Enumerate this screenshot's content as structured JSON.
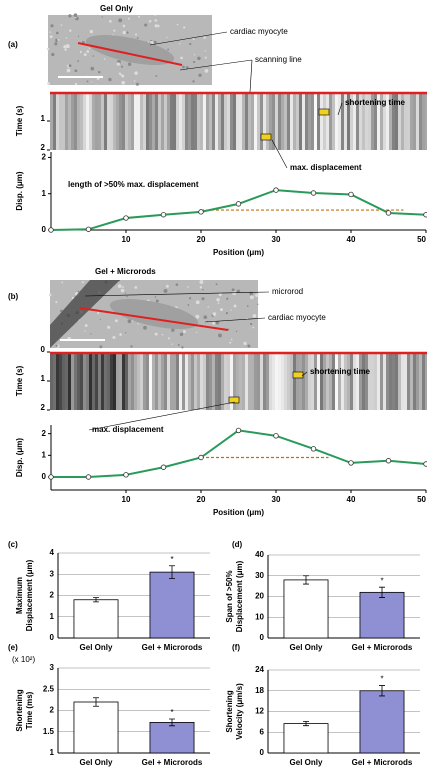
{
  "chart_data": [
    {
      "type": "image",
      "panel": "(a)",
      "title": "Gel Only",
      "labels": [
        "cardiac myocyte",
        "scanning line"
      ]
    },
    {
      "type": "kymograph",
      "ylabel": "Time (s)",
      "ylim": [
        0,
        2
      ],
      "yticks": [
        1,
        2
      ],
      "labels": [
        "shortening time",
        "max. displacement"
      ]
    },
    {
      "type": "line",
      "xlabel": "Position (μm)",
      "ylabel": "Disp. (μm)",
      "xlim": [
        0,
        50
      ],
      "ylim": [
        0,
        2.15
      ],
      "xticks": [
        10,
        20,
        30,
        40,
        50
      ],
      "yticks": [
        0,
        1,
        2
      ],
      "color": "#2a9a5a",
      "x": [
        0,
        5,
        10,
        15,
        20,
        25,
        30,
        35,
        40,
        45,
        50
      ],
      "values": [
        0,
        0.02,
        0.33,
        0.42,
        0.5,
        0.72,
        1.1,
        1.02,
        0.98,
        0.47,
        0.42
      ],
      "threshold": {
        "y": 0.55,
        "x": [
          20,
          47
        ]
      },
      "annotation": "length of >50% max. displacement"
    },
    {
      "type": "image",
      "panel": "(b)",
      "title": "Gel + Microrods",
      "labels": [
        "microrod",
        "cardiac myocyte"
      ]
    },
    {
      "type": "kymograph",
      "ylabel": "Time (s)",
      "ylim": [
        0,
        2
      ],
      "yticks": [
        0,
        1,
        2
      ],
      "labels": [
        "shortening time",
        "max. displacement"
      ]
    },
    {
      "type": "line",
      "xlabel": "Position (μm)",
      "ylabel": "Disp. (μm)",
      "xlim": [
        0,
        50
      ],
      "ylim": [
        -0.6,
        2.4
      ],
      "xticks": [
        10,
        20,
        30,
        40,
        50
      ],
      "yticks": [
        0,
        1,
        2
      ],
      "color": "#2a9a5a",
      "x": [
        0,
        5,
        10,
        15,
        20,
        25,
        30,
        35,
        40,
        45,
        50
      ],
      "values": [
        0,
        0,
        0.1,
        0.45,
        0.9,
        2.15,
        1.9,
        1.3,
        0.65,
        0.75,
        0.6
      ],
      "threshold": {
        "y": 0.9,
        "x": [
          20,
          37
        ]
      }
    },
    {
      "type": "bar",
      "panel": "(c)",
      "ylabel": [
        "Maximum",
        "Displacement (μm)"
      ],
      "categories": [
        "Gel Only",
        "Gel + Microrods"
      ],
      "values": [
        1.8,
        3.1
      ],
      "errors": [
        0.1,
        0.3
      ],
      "stars": [
        null,
        "*"
      ],
      "colors": [
        "#ffffff",
        "#8f8fd4"
      ],
      "ylim": [
        0,
        4
      ],
      "yticks": [
        0,
        1,
        2,
        3,
        4
      ],
      "grid": true
    },
    {
      "type": "bar",
      "panel": "(d)",
      "ylabel": [
        "Span of >50%",
        "Displacement (μm)"
      ],
      "categories": [
        "Gel Only",
        "Gel + Microrods"
      ],
      "values": [
        28,
        22
      ],
      "errors": [
        2,
        2.5
      ],
      "stars": [
        null,
        "*"
      ],
      "colors": [
        "#ffffff",
        "#8f8fd4"
      ],
      "ylim": [
        0,
        40
      ],
      "yticks": [
        0,
        10,
        20,
        30,
        40
      ],
      "grid": true
    },
    {
      "type": "bar",
      "panel": "(e)",
      "scale_note": "(x 10²)",
      "ylabel": [
        "Shortening",
        "Time (ms)"
      ],
      "categories": [
        "Gel Only",
        "Gel + Microrods"
      ],
      "values": [
        2.2,
        1.72
      ],
      "errors": [
        0.1,
        0.08
      ],
      "stars": [
        null,
        "*"
      ],
      "colors": [
        "#ffffff",
        "#8f8fd4"
      ],
      "ylim": [
        1,
        3
      ],
      "yticks": [
        1,
        1.5,
        2,
        2.5,
        3
      ],
      "grid": true
    },
    {
      "type": "bar",
      "panel": "(f)",
      "ylabel": [
        "Shortening",
        "Velocity (μm/s)"
      ],
      "categories": [
        "Gel Only",
        "Gel + Microrods"
      ],
      "values": [
        8.5,
        18
      ],
      "errors": [
        0.6,
        1.5
      ],
      "stars": [
        null,
        "*"
      ],
      "colors": [
        "#ffffff",
        "#8f8fd4"
      ],
      "ylim": [
        0,
        24
      ],
      "yticks": [
        0,
        6,
        12,
        18,
        24
      ],
      "grid": true
    }
  ]
}
